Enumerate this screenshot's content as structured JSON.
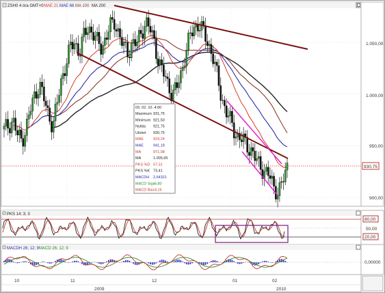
{
  "header": {
    "instrument_label": "ZSH0 4 óra GMT+0",
    "legend": [
      {
        "label": "MAE 21",
        "color": "#d63a2a"
      },
      {
        "label": "MAE 66",
        "color": "#2a2aa8"
      },
      {
        "label": "MA 100",
        "color": "#8b3a2a"
      },
      {
        "label": "MA 200",
        "color": "#222222"
      }
    ],
    "maximize_icon": "maximize-icon"
  },
  "info_box": {
    "date": "03. 02. 10. 4:00",
    "rows": [
      {
        "label": "Maximum",
        "value": "931,75",
        "color": "#222222"
      },
      {
        "label": "Minimum",
        "value": "921,50",
        "color": "#222222"
      },
      {
        "label": "Nyitás",
        "value": "921,75",
        "color": "#222222"
      },
      {
        "label": "Utolsó",
        "value": "930,75",
        "color": "#222222"
      },
      {
        "label": "MAE",
        "value": "924,24",
        "color": "#d63a2a"
      },
      {
        "label": "MAE",
        "value": "941,18",
        "color": "#2a2aa8"
      },
      {
        "label": "MA",
        "value": "971,08",
        "color": "#c0392b"
      },
      {
        "label": "MA",
        "value": "1.005,95",
        "color": "#222222"
      },
      {
        "label": "PKS %D",
        "value": "57,31",
        "color": "#c0392b"
      },
      {
        "label": "PKS %K",
        "value": "73,41",
        "color": "#222222"
      },
      {
        "label": "MACDH",
        "value": "2,64321",
        "color": "#2a2aa8"
      },
      {
        "label": "MACD Sign",
        "value": "-6,80",
        "color": "#2a8a2a"
      },
      {
        "label": "MACD Bas",
        "value": "-4,16",
        "color": "#c0392b"
      }
    ]
  },
  "price_axis": {
    "labels": [
      "1.050,00",
      "1.000,00",
      "950,00",
      "900,00"
    ],
    "last_price_label": "930,75"
  },
  "stochastic_panel": {
    "title": "PKS 14; 3; 3",
    "upper_label": "80,00",
    "lower_label": "20,00",
    "mid_label": "50,00"
  },
  "macd_panel": {
    "title_a": "MACDH 26; 12; 9",
    "title_b": "MACD 26; 12; 9",
    "zero_label": "0,00000"
  },
  "time_axis": {
    "month_labels": [
      "10",
      "11",
      "12",
      "01",
      "02"
    ],
    "year_labels": [
      "2009",
      "2010"
    ]
  },
  "chart_data": {
    "type": "candlestick",
    "title": "ZSH0 4 óra GMT+0",
    "ylim": [
      875,
      1085
    ],
    "price_tick_values": [
      1050,
      1000,
      950,
      900
    ],
    "last_price": 930.75,
    "series": [
      {
        "name": "MAE 21",
        "color": "#d63a2a"
      },
      {
        "name": "MAE 66",
        "color": "#2a2aa8"
      },
      {
        "name": "MA 100",
        "color": "#8b3a2a"
      },
      {
        "name": "MA 200",
        "color": "#222222"
      }
    ],
    "x_months": [
      "10",
      "11",
      "12",
      "01",
      "02"
    ],
    "close_path_approx": [
      965,
      970,
      975,
      960,
      955,
      968,
      985,
      1000,
      1010,
      995,
      980,
      970,
      990,
      1015,
      1030,
      1045,
      1050,
      1040,
      1055,
      1065,
      1060,
      1050,
      1045,
      1055,
      1065,
      1070,
      1058,
      1045,
      1040,
      1050,
      1048,
      1060,
      1070,
      1062,
      1050,
      1030,
      1020,
      1010,
      1000,
      1005,
      1020,
      1040,
      1055,
      1065,
      1068,
      1060,
      1050,
      1040,
      1020,
      1000,
      985,
      975,
      965,
      958,
      955,
      950,
      945,
      935,
      930,
      925,
      920,
      910,
      905,
      915,
      930
    ],
    "stochastic_levels": [
      80,
      50,
      20
    ],
    "macd_zero": 0
  }
}
